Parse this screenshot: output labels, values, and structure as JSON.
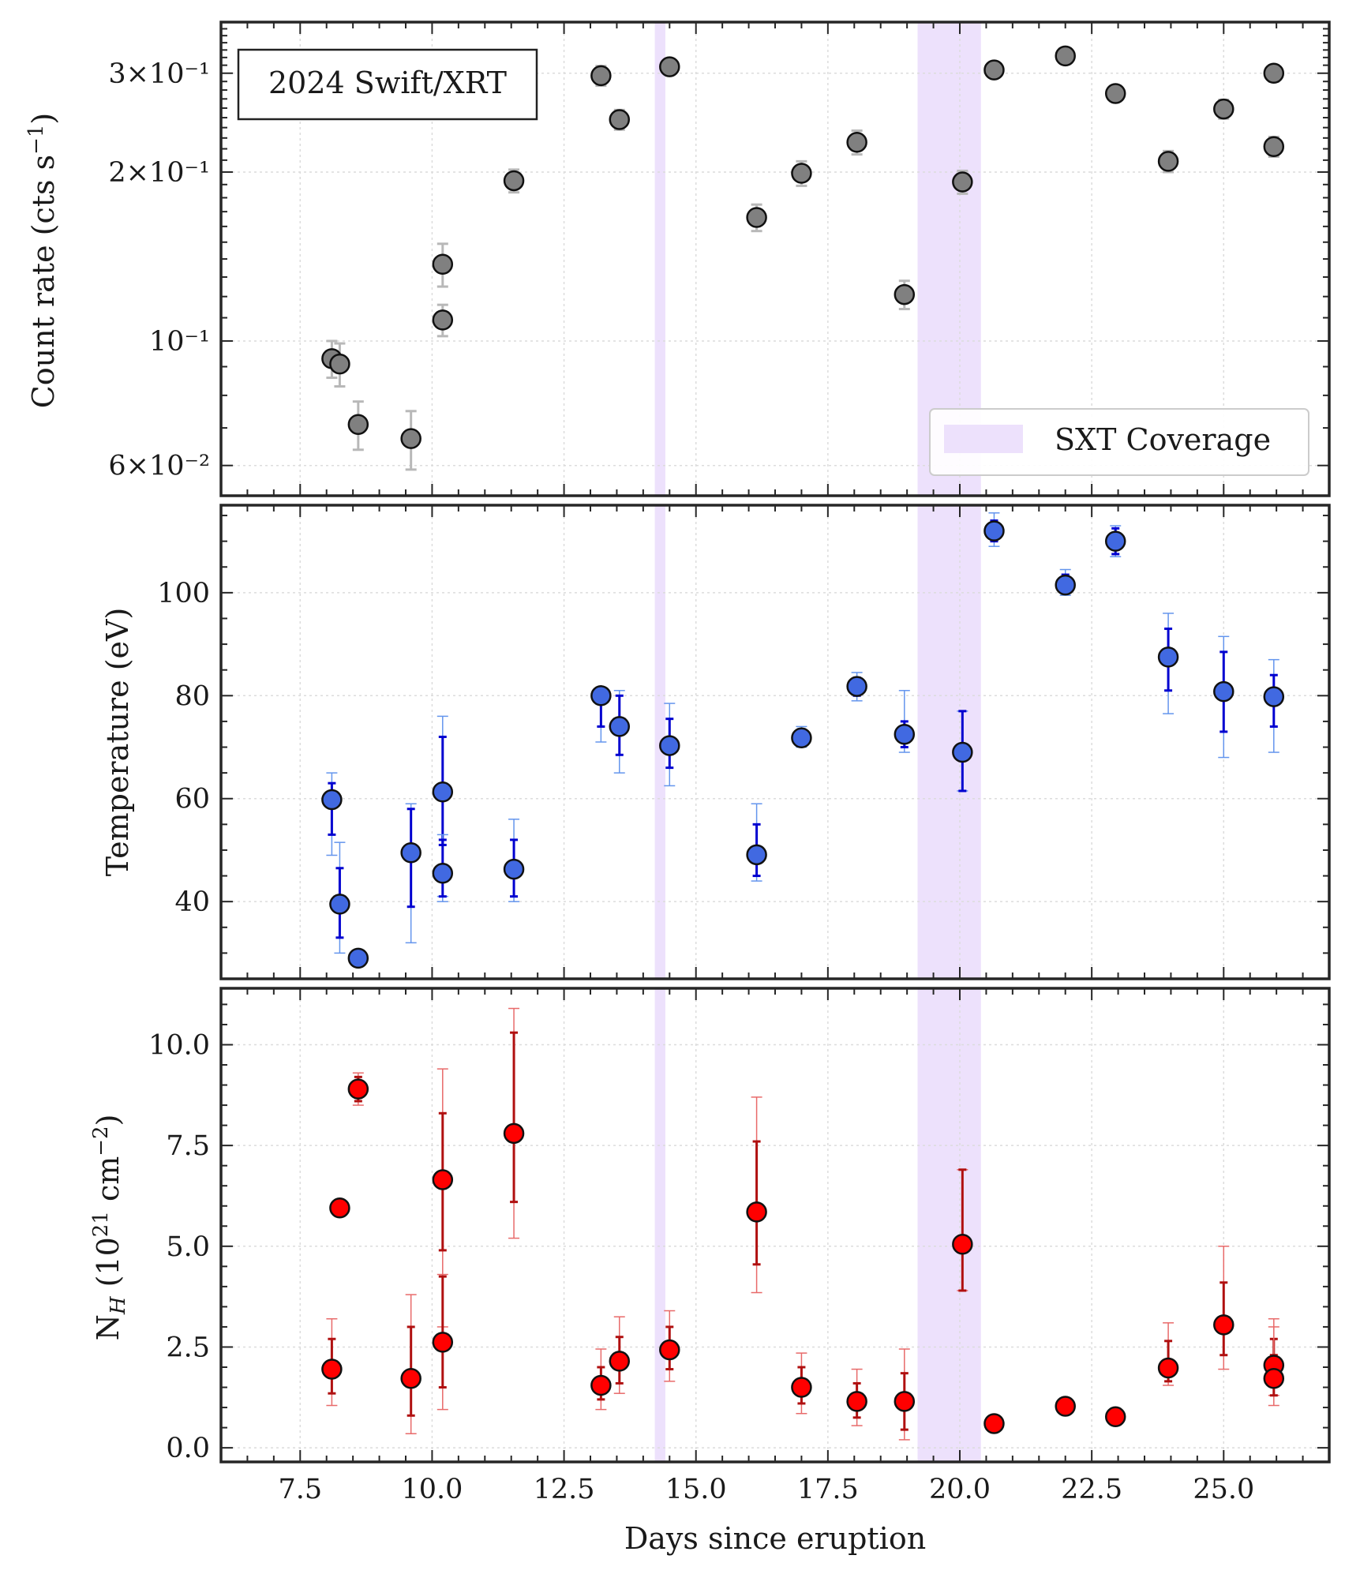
{
  "chart_data": [
    {
      "id": "count",
      "type": "scatter",
      "yscale": "log",
      "ylabel": "Count rate (cts s⁻¹)",
      "ylim": [
        0.053,
        0.37
      ],
      "yticks": [
        {
          "value": 0.06,
          "label": "6×10⁻²"
        },
        {
          "value": 0.1,
          "label": "10⁻¹"
        },
        {
          "value": 0.2,
          "label": "2×10⁻¹"
        },
        {
          "value": 0.3,
          "label": "3×10⁻¹"
        }
      ],
      "annotation": "2024 Swift/XRT",
      "legend": {
        "label": "SXT Coverage",
        "position": "bottom-right"
      },
      "marker_color": "#808080",
      "err_color": "#b8b8b8",
      "points": [
        {
          "x": 8.1,
          "y": 0.093,
          "err": 0.007
        },
        {
          "x": 8.25,
          "y": 0.091,
          "err": 0.008
        },
        {
          "x": 8.6,
          "y": 0.071,
          "err": 0.007
        },
        {
          "x": 9.6,
          "y": 0.067,
          "err": 0.008
        },
        {
          "x": 10.2,
          "y": 0.137,
          "err": 0.012
        },
        {
          "x": 10.2,
          "y": 0.109,
          "err": 0.007
        },
        {
          "x": 11.55,
          "y": 0.193,
          "err": 0.009
        },
        {
          "x": 13.2,
          "y": 0.297,
          "err": 0.012
        },
        {
          "x": 13.55,
          "y": 0.248,
          "err": 0.01
        },
        {
          "x": 14.5,
          "y": 0.308,
          "err": 0.01
        },
        {
          "x": 16.15,
          "y": 0.166,
          "err": 0.009
        },
        {
          "x": 17.0,
          "y": 0.199,
          "err": 0.01
        },
        {
          "x": 18.05,
          "y": 0.226,
          "err": 0.011
        },
        {
          "x": 18.95,
          "y": 0.121,
          "err": 0.007
        },
        {
          "x": 20.05,
          "y": 0.192,
          "err": 0.009
        },
        {
          "x": 20.65,
          "y": 0.304,
          "err": 0.008
        },
        {
          "x": 22.0,
          "y": 0.322,
          "err": 0.009
        },
        {
          "x": 22.95,
          "y": 0.276,
          "err": 0.008
        },
        {
          "x": 23.95,
          "y": 0.209,
          "err": 0.009
        },
        {
          "x": 25.0,
          "y": 0.259,
          "err": 0.01
        },
        {
          "x": 25.95,
          "y": 0.3,
          "err": 0.01
        },
        {
          "x": 25.95,
          "y": 0.222,
          "err": 0.009
        }
      ]
    },
    {
      "id": "temp",
      "type": "scatter",
      "yscale": "linear",
      "ylabel": "Temperature (eV)",
      "ylim": [
        25,
        117
      ],
      "yticks": [
        {
          "value": 40,
          "label": "40"
        },
        {
          "value": 60,
          "label": "60"
        },
        {
          "value": 80,
          "label": "80"
        },
        {
          "value": 100,
          "label": "100"
        }
      ],
      "yminor": 5,
      "marker_color": "#4169e1",
      "err_color": "#0000d0",
      "err_outer_color": "#6495ed",
      "points": [
        {
          "x": 8.1,
          "y": 59.8,
          "e1": [
            53,
            63
          ],
          "e2": [
            49,
            65
          ]
        },
        {
          "x": 8.25,
          "y": 39.5,
          "e1": [
            33,
            46.5
          ],
          "e2": [
            30,
            51.5
          ]
        },
        {
          "x": 8.6,
          "y": 29.0
        },
        {
          "x": 9.6,
          "y": 49.5,
          "e1": [
            39,
            58
          ],
          "e2": [
            32,
            59
          ]
        },
        {
          "x": 10.2,
          "y": 61.3,
          "e1": [
            51,
            72
          ],
          "e2": [
            41,
            76
          ]
        },
        {
          "x": 10.2,
          "y": 45.5,
          "e1": [
            41,
            52
          ],
          "e2": [
            40,
            53
          ]
        },
        {
          "x": 11.55,
          "y": 46.3,
          "e1": [
            41,
            52
          ],
          "e2": [
            40,
            56
          ]
        },
        {
          "x": 13.2,
          "y": 80.0,
          "e1": [
            74,
            80.5
          ],
          "e2": [
            71,
            81
          ]
        },
        {
          "x": 13.55,
          "y": 74.0,
          "e1": [
            68.5,
            80
          ],
          "e2": [
            65,
            81
          ]
        },
        {
          "x": 14.5,
          "y": 70.3,
          "e1": [
            66,
            75.5
          ],
          "e2": [
            62.5,
            78.5
          ]
        },
        {
          "x": 16.15,
          "y": 49.1,
          "e1": [
            45,
            55
          ],
          "e2": [
            44,
            59
          ]
        },
        {
          "x": 17.0,
          "y": 71.8,
          "e1": [
            70.5,
            73.5
          ],
          "e2": [
            70,
            74
          ]
        },
        {
          "x": 18.05,
          "y": 81.8,
          "e1": [
            80,
            83.5
          ],
          "e2": [
            79,
            84.5
          ]
        },
        {
          "x": 18.95,
          "y": 72.5,
          "e1": [
            70,
            75
          ],
          "e2": [
            69,
            81
          ]
        },
        {
          "x": 20.05,
          "y": 69.0,
          "e1": [
            61.5,
            77
          ],
          "e2": [
            61.5,
            77
          ]
        },
        {
          "x": 20.65,
          "y": 112.0,
          "e1": [
            110,
            114
          ],
          "e2": [
            109,
            115.5
          ]
        },
        {
          "x": 22.0,
          "y": 101.5,
          "e1": [
            100,
            103.5
          ],
          "e2": [
            99.5,
            104.5
          ]
        },
        {
          "x": 22.95,
          "y": 110.0,
          "e1": [
            107.5,
            112.5
          ],
          "e2": [
            107,
            113
          ]
        },
        {
          "x": 23.95,
          "y": 87.5,
          "e1": [
            81,
            93
          ],
          "e2": [
            76.5,
            96
          ]
        },
        {
          "x": 25.0,
          "y": 80.8,
          "e1": [
            73,
            88.5
          ],
          "e2": [
            68,
            91.5
          ]
        },
        {
          "x": 25.95,
          "y": 79.8,
          "e1": [
            74,
            84
          ],
          "e2": [
            69,
            87
          ]
        }
      ]
    },
    {
      "id": "nh",
      "type": "scatter",
      "yscale": "linear",
      "ylabel": "N_H (10²¹ cm⁻²)",
      "xlabel": "Days since eruption",
      "ylim": [
        -0.35,
        11.4
      ],
      "yticks": [
        {
          "value": 0,
          "label": "0.0"
        },
        {
          "value": 2.5,
          "label": "2.5"
        },
        {
          "value": 5,
          "label": "5.0"
        },
        {
          "value": 7.5,
          "label": "7.5"
        },
        {
          "value": 10,
          "label": "10.0"
        }
      ],
      "yminor": 0.5,
      "marker_color": "#ff0000",
      "err_color": "#b01010",
      "err_outer_color": "#e86a6a",
      "points": [
        {
          "x": 8.1,
          "y": 1.95,
          "e1": [
            1.35,
            2.7
          ],
          "e2": [
            1.05,
            3.2
          ]
        },
        {
          "x": 8.25,
          "y": 5.95
        },
        {
          "x": 8.6,
          "y": 8.9,
          "e1": [
            8.6,
            9.2
          ],
          "e2": [
            8.5,
            9.3
          ]
        },
        {
          "x": 9.6,
          "y": 1.72,
          "e1": [
            0.8,
            3.0
          ],
          "e2": [
            0.35,
            3.8
          ]
        },
        {
          "x": 10.2,
          "y": 6.65,
          "e1": [
            4.9,
            8.3
          ],
          "e2": [
            3.0,
            9.4
          ]
        },
        {
          "x": 10.2,
          "y": 2.62,
          "e1": [
            1.5,
            4.25
          ],
          "e2": [
            0.95,
            4.3
          ]
        },
        {
          "x": 11.55,
          "y": 7.8,
          "e1": [
            6.1,
            10.3
          ],
          "e2": [
            5.2,
            10.9
          ]
        },
        {
          "x": 13.2,
          "y": 1.55,
          "e1": [
            1.2,
            2.0
          ],
          "e2": [
            0.95,
            2.45
          ]
        },
        {
          "x": 13.55,
          "y": 2.15,
          "e1": [
            1.6,
            2.75
          ],
          "e2": [
            1.35,
            3.25
          ]
        },
        {
          "x": 14.5,
          "y": 2.43,
          "e1": [
            1.95,
            3.0
          ],
          "e2": [
            1.65,
            3.4
          ]
        },
        {
          "x": 16.15,
          "y": 5.85,
          "e1": [
            4.55,
            7.6
          ],
          "e2": [
            3.85,
            8.7
          ]
        },
        {
          "x": 17.0,
          "y": 1.5,
          "e1": [
            1.1,
            2.0
          ],
          "e2": [
            0.85,
            2.35
          ]
        },
        {
          "x": 18.05,
          "y": 1.15,
          "e1": [
            0.75,
            1.6
          ],
          "e2": [
            0.55,
            1.95
          ]
        },
        {
          "x": 18.95,
          "y": 1.15,
          "e1": [
            0.45,
            1.85
          ],
          "e2": [
            0.2,
            2.45
          ]
        },
        {
          "x": 20.05,
          "y": 5.05,
          "e1": [
            3.9,
            6.9
          ],
          "e2": [
            3.9,
            6.9
          ]
        },
        {
          "x": 20.65,
          "y": 0.6
        },
        {
          "x": 22.0,
          "y": 1.03
        },
        {
          "x": 22.95,
          "y": 0.77
        },
        {
          "x": 23.95,
          "y": 1.98,
          "e1": [
            1.65,
            2.65
          ],
          "e2": [
            1.55,
            3.1
          ]
        },
        {
          "x": 25.0,
          "y": 3.05,
          "e1": [
            2.3,
            4.1
          ],
          "e2": [
            1.95,
            5.0
          ]
        },
        {
          "x": 25.95,
          "y": 2.05,
          "e1": [
            1.6,
            2.7
          ],
          "e2": [
            1.3,
            3.2
          ]
        },
        {
          "x": 25.95,
          "y": 1.72,
          "e1": [
            1.3,
            2.3
          ],
          "e2": [
            1.05,
            3.0
          ]
        }
      ]
    }
  ],
  "x_axis": {
    "xlim": [
      6.0,
      27.0
    ],
    "xticks": [
      {
        "value": 7.5,
        "label": "7.5"
      },
      {
        "value": 10.0,
        "label": "10.0"
      },
      {
        "value": 12.5,
        "label": "12.5"
      },
      {
        "value": 15.0,
        "label": "15.0"
      },
      {
        "value": 17.5,
        "label": "17.5"
      },
      {
        "value": 20.0,
        "label": "20.0"
      },
      {
        "value": 22.5,
        "label": "22.5"
      },
      {
        "value": 25.0,
        "label": "25.0"
      }
    ],
    "xminor": 0.5
  },
  "coverage_bands": [
    {
      "x0": 14.22,
      "x1": 14.42
    },
    {
      "x0": 19.2,
      "x1": 20.4
    }
  ],
  "colors": {
    "band": "#ede1fc",
    "frame": "#262626",
    "grid": "#dcdcdc",
    "marker_edge": "#111111"
  }
}
